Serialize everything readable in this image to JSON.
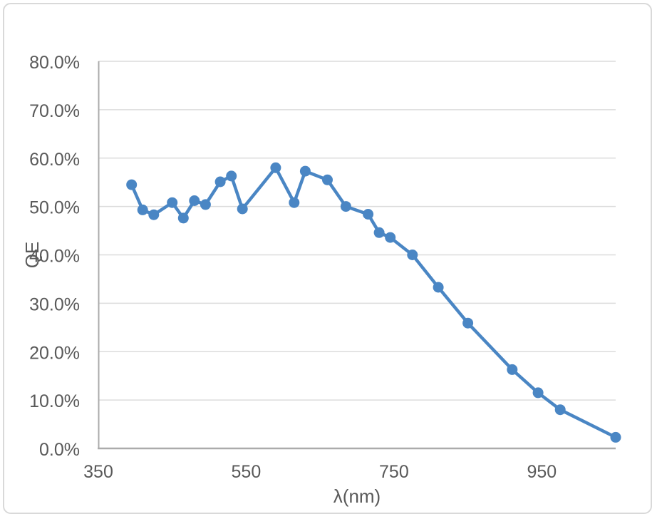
{
  "chart_data": {
    "type": "line",
    "title": "",
    "xlabel": "λ(nm)",
    "ylabel": "QE",
    "series_name": "QE",
    "x": [
      395,
      410,
      425,
      450,
      465,
      480,
      495,
      515,
      530,
      545,
      590,
      615,
      630,
      660,
      685,
      715,
      730,
      745,
      775,
      810,
      850,
      910,
      945,
      975,
      1050
    ],
    "values_percent": [
      54.5,
      49.3,
      48.3,
      50.8,
      47.6,
      51.2,
      50.4,
      55.1,
      56.3,
      49.5,
      58.0,
      50.8,
      57.3,
      55.5,
      50.0,
      48.4,
      44.6,
      43.6,
      40.0,
      33.3,
      25.9,
      16.3,
      11.5,
      8.0,
      2.3
    ],
    "xlim": [
      350,
      1050
    ],
    "ylim_percent": [
      0,
      80
    ],
    "x_tick_values": [
      350,
      550,
      750,
      950
    ],
    "x_tick_labels": [
      "350",
      "550",
      "750",
      "950"
    ],
    "y_tick_values_percent": [
      0,
      10,
      20,
      30,
      40,
      50,
      60,
      70,
      80
    ],
    "y_tick_labels": [
      "0.0%",
      "10.0%",
      "20.0%",
      "30.0%",
      "40.0%",
      "50.0%",
      "60.0%",
      "70.0%",
      "80.0%"
    ],
    "grid": true,
    "legend": false,
    "marker": "circle",
    "colors": {
      "series": "#4A86C4",
      "gridline": "#DCDCDC",
      "axis_line": "#ABABAB",
      "tick_text": "#595959",
      "axis_title_text": "#595959",
      "chart_border": "#D9D9D9",
      "background": "#FFFFFF"
    }
  }
}
